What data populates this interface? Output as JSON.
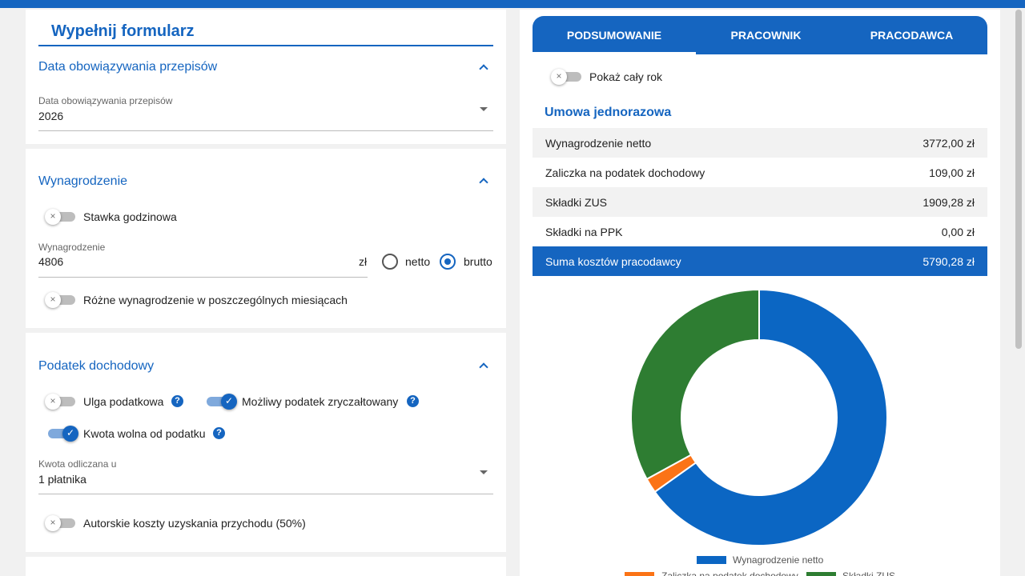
{
  "form": {
    "title": "Wypełnij formularz",
    "sections": [
      {
        "title": "Data obowiązywania przepisów",
        "field_label": "Data obowiązywania przepisów",
        "field_value": "2026"
      },
      {
        "title": "Wynagrodzenie",
        "toggle": "Stawka godzinowa",
        "field_label": "Wynagrodzenie",
        "field_value": "4806",
        "unit": "zł",
        "radios": [
          "netto",
          "brutto"
        ],
        "toggle2": "Różne wynagrodzenie w poszczególnych miesiącach"
      },
      {
        "title": "Podatek dochodowy",
        "toggles": [
          "Ulga podatkowa",
          "Możliwy podatek zryczałtowany",
          "Kwota wolna od podatku"
        ],
        "field_label": "Kwota odliczana u",
        "field_value": "1 płatnika",
        "toggle2": "Autorskie koszty uzyskania przychodu (50%)"
      }
    ]
  },
  "summary": {
    "tabs": [
      "PODSUMOWANIE",
      "PRACOWNIK",
      "PRACODAWCA"
    ],
    "toggle": "Pokaż cały rok",
    "heading": "Umowa jednorazowa",
    "rows": [
      [
        "Wynagrodzenie netto",
        "3772,00 zł"
      ],
      [
        "Zaliczka na podatek dochodowy",
        "109,00 zł"
      ],
      [
        "Składki ZUS",
        "1909,28 zł"
      ],
      [
        "Składki na PPK",
        "0,00 zł"
      ]
    ],
    "total": [
      "Suma kosztów pracodawcy",
      "5790,28 zł"
    ]
  },
  "chart_data": {
    "type": "pie",
    "categories": [
      "Wynagrodzenie netto",
      "Zaliczka na podatek dochodowy",
      "Składki ZUS"
    ],
    "values": [
      3772,
      109,
      1909.28
    ],
    "colors": [
      "#0b66c3",
      "#fb7316",
      "#2e7d32"
    ]
  }
}
